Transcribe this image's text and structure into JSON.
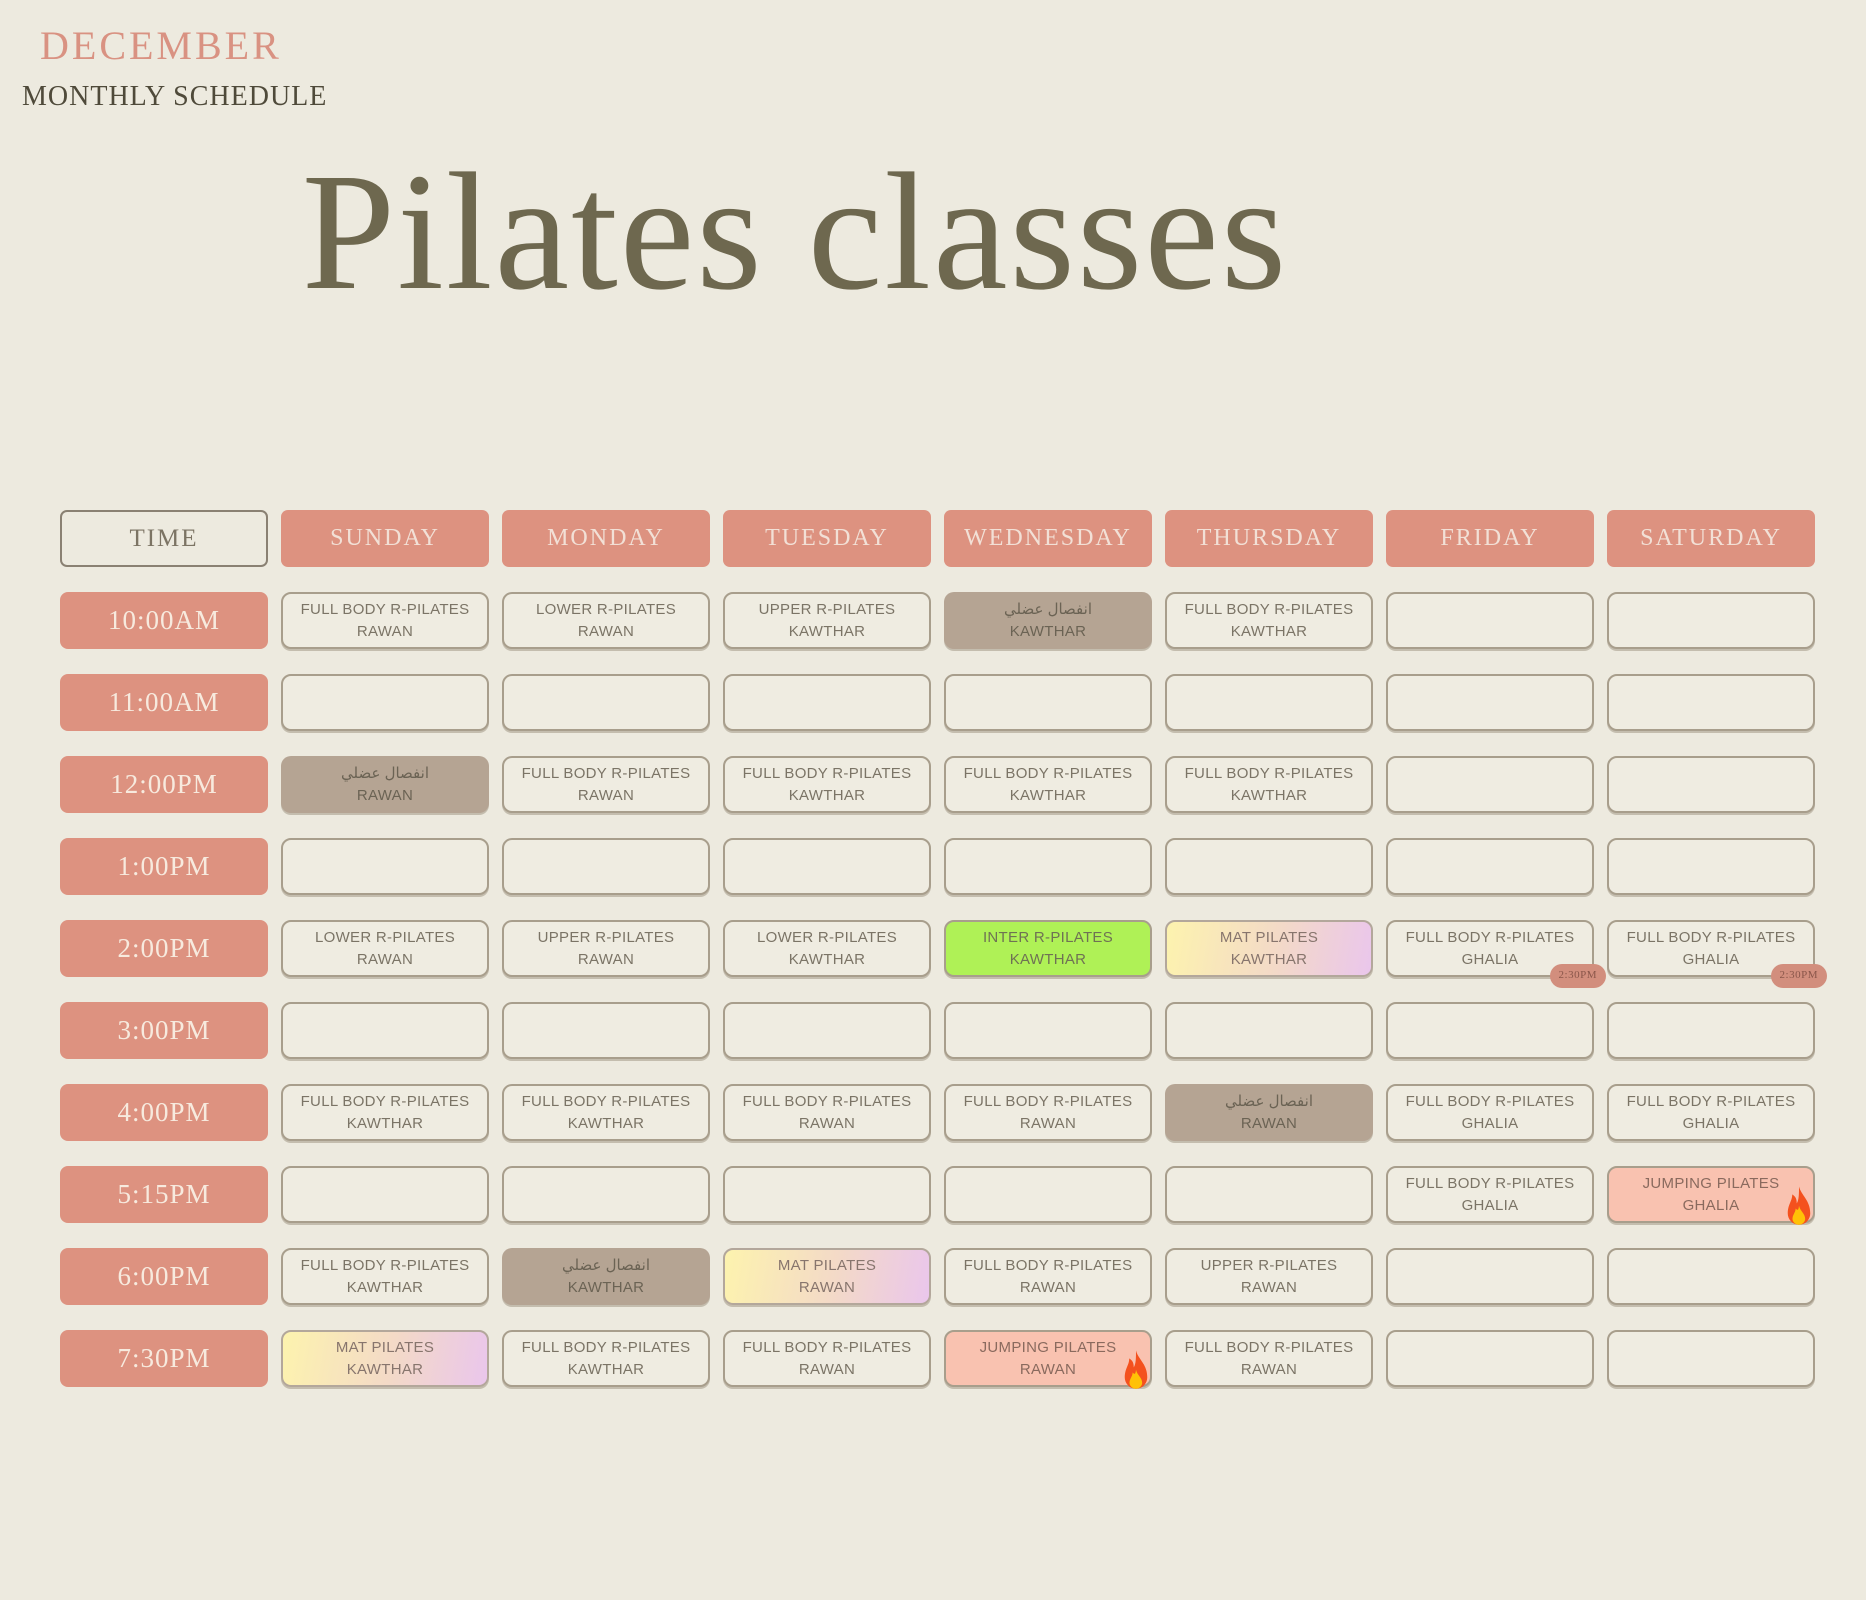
{
  "header": {
    "month": "DECEMBER",
    "subtitle": "MONTHLY SCHEDULE",
    "title": "Pilates classes"
  },
  "colors": {
    "background": "#edeadf",
    "salmon": "#dd9280",
    "taupe_fill": "#b5a493",
    "green_fill": "#aff156",
    "gradient_yellow": "#fdf3ae",
    "gradient_pink": "#eac6ec",
    "jumping_pink": "#f9c2b0",
    "cell_border": "#a89e8c",
    "cell_text": "#7b7466",
    "header_text_cream": "#f2e0d6",
    "title_olive": "#6e684f",
    "month_salmon": "#d99282"
  },
  "table": {
    "time_header": "TIME",
    "day_headers": [
      "SUNDAY",
      "MONDAY",
      "TUESDAY",
      "WEDNESDAY",
      "THURSDAY",
      "FRIDAY",
      "SATURDAY"
    ],
    "rows": [
      {
        "time": "10:00AM",
        "cells": [
          {
            "style": "outline",
            "title": "FULL BODY R-PILATES",
            "instructor": "RAWAN"
          },
          {
            "style": "outline",
            "title": "LOWER R-PILATES",
            "instructor": "RAWAN"
          },
          {
            "style": "outline",
            "title": "UPPER R-PILATES",
            "instructor": "KAWTHAR"
          },
          {
            "style": "taupe",
            "title": "انفصال عضلي",
            "instructor": "KAWTHAR"
          },
          {
            "style": "outline",
            "title": "FULL BODY R-PILATES",
            "instructor": "KAWTHAR"
          },
          {
            "style": "empty"
          },
          {
            "style": "empty"
          }
        ]
      },
      {
        "time": "11:00AM",
        "cells": [
          {
            "style": "empty"
          },
          {
            "style": "empty"
          },
          {
            "style": "empty"
          },
          {
            "style": "empty"
          },
          {
            "style": "empty"
          },
          {
            "style": "empty"
          },
          {
            "style": "empty"
          }
        ]
      },
      {
        "time": "12:00PM",
        "cells": [
          {
            "style": "taupe",
            "title": "انفصال عضلي",
            "instructor": "RAWAN"
          },
          {
            "style": "outline",
            "title": "FULL BODY R-PILATES",
            "instructor": "RAWAN"
          },
          {
            "style": "outline",
            "title": "FULL BODY R-PILATES",
            "instructor": "KAWTHAR"
          },
          {
            "style": "outline",
            "title": "FULL BODY R-PILATES",
            "instructor": "KAWTHAR"
          },
          {
            "style": "outline",
            "title": "FULL BODY R-PILATES",
            "instructor": "KAWTHAR"
          },
          {
            "style": "empty"
          },
          {
            "style": "empty"
          }
        ]
      },
      {
        "time": "1:00PM",
        "cells": [
          {
            "style": "empty"
          },
          {
            "style": "empty"
          },
          {
            "style": "empty"
          },
          {
            "style": "empty"
          },
          {
            "style": "empty"
          },
          {
            "style": "empty"
          },
          {
            "style": "empty"
          }
        ]
      },
      {
        "time": "2:00PM",
        "cells": [
          {
            "style": "outline",
            "title": "LOWER R-PILATES",
            "instructor": "RAWAN"
          },
          {
            "style": "outline",
            "title": "UPPER R-PILATES",
            "instructor": "RAWAN"
          },
          {
            "style": "outline",
            "title": "LOWER R-PILATES",
            "instructor": "KAWTHAR"
          },
          {
            "style": "green",
            "title": "INTER R-PILATES",
            "instructor": "KAWTHAR"
          },
          {
            "style": "gradient",
            "title": "MAT PILATES",
            "instructor": "KAWTHAR"
          },
          {
            "style": "outline",
            "title": "FULL BODY R-PILATES",
            "instructor": "GHALIA",
            "badge": "2:30PM"
          },
          {
            "style": "outline",
            "title": "FULL BODY R-PILATES",
            "instructor": "GHALIA",
            "badge": "2:30PM"
          }
        ]
      },
      {
        "time": "3:00PM",
        "cells": [
          {
            "style": "empty"
          },
          {
            "style": "empty"
          },
          {
            "style": "empty"
          },
          {
            "style": "empty"
          },
          {
            "style": "empty"
          },
          {
            "style": "empty"
          },
          {
            "style": "empty"
          }
        ]
      },
      {
        "time": "4:00PM",
        "cells": [
          {
            "style": "outline",
            "title": "FULL BODY R-PILATES",
            "instructor": "KAWTHAR"
          },
          {
            "style": "outline",
            "title": "FULL BODY R-PILATES",
            "instructor": "KAWTHAR"
          },
          {
            "style": "outline",
            "title": "FULL BODY R-PILATES",
            "instructor": "RAWAN"
          },
          {
            "style": "outline",
            "title": "FULL BODY R-PILATES",
            "instructor": "RAWAN"
          },
          {
            "style": "taupe",
            "title": "انفصال عضلي",
            "instructor": "RAWAN"
          },
          {
            "style": "outline",
            "title": "FULL BODY R-PILATES",
            "instructor": "GHALIA"
          },
          {
            "style": "outline",
            "title": "FULL BODY R-PILATES",
            "instructor": "GHALIA"
          }
        ]
      },
      {
        "time": "5:15PM",
        "cells": [
          {
            "style": "empty"
          },
          {
            "style": "empty"
          },
          {
            "style": "empty"
          },
          {
            "style": "empty"
          },
          {
            "style": "empty"
          },
          {
            "style": "outline",
            "title": "FULL BODY R-PILATES",
            "instructor": "GHALIA"
          },
          {
            "style": "pink",
            "title": "JUMPING PILATES",
            "instructor": "GHALIA",
            "fire": true
          }
        ]
      },
      {
        "time": "6:00PM",
        "cells": [
          {
            "style": "outline",
            "title": "FULL BODY R-PILATES",
            "instructor": "KAWTHAR"
          },
          {
            "style": "taupe",
            "title": "انفصال عضلي",
            "instructor": "KAWTHAR"
          },
          {
            "style": "gradient",
            "title": "MAT PILATES",
            "instructor": "RAWAN"
          },
          {
            "style": "outline",
            "title": "FULL BODY R-PILATES",
            "instructor": "RAWAN"
          },
          {
            "style": "outline",
            "title": "UPPER R-PILATES",
            "instructor": "RAWAN"
          },
          {
            "style": "empty"
          },
          {
            "style": "empty"
          }
        ]
      },
      {
        "time": "7:30PM",
        "cells": [
          {
            "style": "gradient",
            "title": "MAT PILATES",
            "instructor": "KAWTHAR"
          },
          {
            "style": "outline",
            "title": "FULL BODY R-PILATES",
            "instructor": "KAWTHAR"
          },
          {
            "style": "outline",
            "title": "FULL BODY R-PILATES",
            "instructor": "RAWAN"
          },
          {
            "style": "pink",
            "title": "JUMPING PILATES",
            "instructor": "RAWAN",
            "fire": true
          },
          {
            "style": "outline",
            "title": "FULL BODY R-PILATES",
            "instructor": "RAWAN"
          },
          {
            "style": "empty"
          },
          {
            "style": "empty"
          }
        ]
      }
    ]
  }
}
